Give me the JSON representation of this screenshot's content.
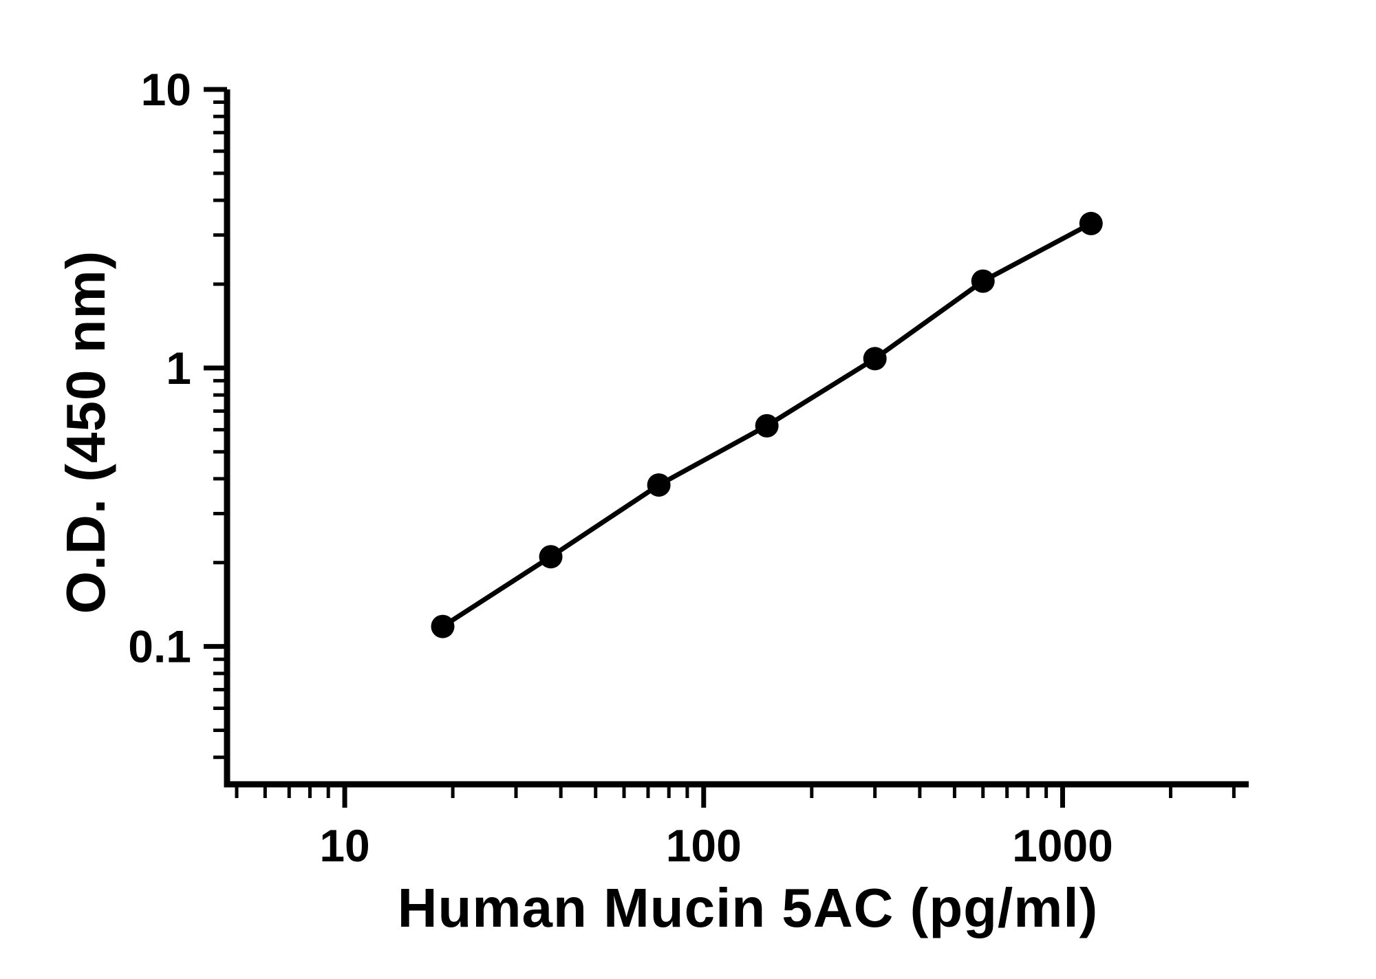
{
  "chart_data": {
    "type": "scatter",
    "title": "",
    "xlabel": "Human Mucin 5AC (pg/ml)",
    "ylabel": "O.D. (450 nm)",
    "x_scale": "log",
    "y_scale": "log",
    "x": [
      18.75,
      37.5,
      75,
      150,
      300,
      600,
      1200
    ],
    "y": [
      0.118,
      0.21,
      0.38,
      0.62,
      1.08,
      2.05,
      3.3
    ],
    "xlim": [
      4.7,
      3300
    ],
    "ylim": [
      0.032,
      10
    ],
    "x_major_ticks": [
      10,
      100,
      1000
    ],
    "x_tick_labels": [
      "10",
      "100",
      "1000"
    ],
    "y_major_ticks": [
      0.1,
      1,
      10
    ],
    "y_tick_labels": [
      "0.1",
      "1",
      "10"
    ],
    "grid": false,
    "legend": false,
    "line_style": "solid",
    "line_color": "#000000",
    "marker": "circle",
    "marker_color": "#000000",
    "background_color": "#ffffff",
    "axis_color": "#000000"
  }
}
